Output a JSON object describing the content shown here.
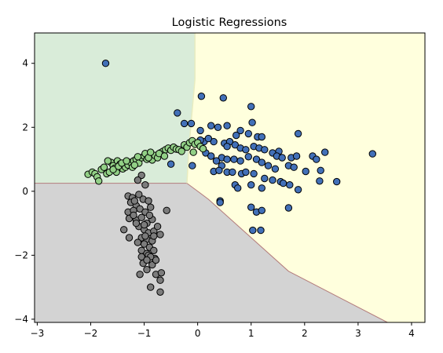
{
  "chart_data": {
    "type": "scatter",
    "title": "Logistic Regressions",
    "xlabel": "",
    "ylabel": "",
    "xlim": [
      -3.05,
      4.25
    ],
    "ylim": [
      -4.1,
      4.95
    ],
    "grid": false,
    "legend": "none",
    "x_ticks": [
      -3,
      -2,
      -1,
      0,
      1,
      2,
      3,
      4
    ],
    "y_ticks": [
      -4,
      -2,
      0,
      2,
      4
    ],
    "regions": [
      {
        "class": "green",
        "color": "#d9ecd9",
        "polygon": [
          [
            -3.05,
            4.95
          ],
          [
            -0.05,
            4.95
          ],
          [
            -0.05,
            3.5
          ],
          [
            -0.12,
            2.2
          ],
          [
            -0.17,
            1.2
          ],
          [
            -0.2,
            0.25
          ],
          [
            -3.05,
            0.25
          ]
        ]
      },
      {
        "class": "yellow",
        "color": "#ffffdd",
        "polygon": [
          [
            -0.05,
            4.95
          ],
          [
            4.25,
            4.95
          ],
          [
            4.25,
            -4.1
          ],
          [
            3.55,
            -4.1
          ],
          [
            1.7,
            -2.5
          ],
          [
            0.2,
            -0.25
          ],
          [
            -0.2,
            0.25
          ],
          [
            -0.17,
            1.2
          ],
          [
            -0.12,
            2.2
          ],
          [
            -0.05,
            3.5
          ]
        ]
      },
      {
        "class": "gray",
        "color": "#d3d3d3",
        "polygon": [
          [
            -3.05,
            0.25
          ],
          [
            -0.2,
            0.25
          ],
          [
            0.2,
            -0.25
          ],
          [
            1.7,
            -2.5
          ],
          [
            3.55,
            -4.1
          ],
          [
            -3.05,
            -4.1
          ]
        ]
      }
    ],
    "boundary_color": "#b37c7c",
    "series": [
      {
        "color": "#4270b8",
        "points": [
          [
            -1.72,
            4.0
          ],
          [
            0.07,
            2.97
          ],
          [
            0.48,
            2.92
          ],
          [
            1.0,
            2.65
          ],
          [
            -0.38,
            2.45
          ],
          [
            -0.25,
            2.12
          ],
          [
            -0.12,
            2.12
          ],
          [
            0.05,
            1.9
          ],
          [
            0.25,
            2.05
          ],
          [
            0.38,
            2.0
          ],
          [
            0.55,
            2.05
          ],
          [
            0.8,
            1.9
          ],
          [
            1.02,
            2.15
          ],
          [
            0.72,
            1.75
          ],
          [
            0.95,
            1.8
          ],
          [
            1.12,
            1.7
          ],
          [
            1.2,
            1.7
          ],
          [
            1.88,
            1.8
          ],
          [
            0.12,
            1.55
          ],
          [
            0.3,
            1.55
          ],
          [
            0.5,
            1.5
          ],
          [
            0.6,
            1.55
          ],
          [
            0.7,
            1.45
          ],
          [
            0.55,
            1.4
          ],
          [
            0.8,
            1.35
          ],
          [
            0.9,
            1.3
          ],
          [
            1.05,
            1.4
          ],
          [
            1.15,
            1.35
          ],
          [
            1.25,
            1.3
          ],
          [
            1.4,
            1.2
          ],
          [
            1.52,
            1.25
          ],
          [
            1.48,
            1.1
          ],
          [
            1.58,
            1.05
          ],
          [
            1.75,
            1.05
          ],
          [
            1.85,
            1.1
          ],
          [
            2.15,
            1.1
          ],
          [
            2.22,
            1.0
          ],
          [
            2.38,
            1.22
          ],
          [
            3.27,
            1.17
          ],
          [
            0.15,
            1.2
          ],
          [
            0.25,
            1.1
          ],
          [
            0.45,
            1.05
          ],
          [
            0.55,
            1.0
          ],
          [
            0.68,
            1.0
          ],
          [
            0.8,
            0.95
          ],
          [
            0.95,
            1.08
          ],
          [
            1.1,
            1.0
          ],
          [
            1.2,
            0.9
          ],
          [
            1.32,
            0.8
          ],
          [
            1.45,
            0.7
          ],
          [
            1.7,
            0.8
          ],
          [
            1.8,
            0.75
          ],
          [
            2.02,
            0.62
          ],
          [
            2.3,
            0.65
          ],
          [
            0.35,
            0.95
          ],
          [
            0.45,
            0.8
          ],
          [
            0.3,
            0.62
          ],
          [
            0.4,
            0.65
          ],
          [
            0.55,
            0.6
          ],
          [
            0.65,
            0.6
          ],
          [
            0.82,
            0.55
          ],
          [
            0.9,
            0.6
          ],
          [
            1.05,
            0.55
          ],
          [
            1.25,
            0.4
          ],
          [
            1.4,
            0.35
          ],
          [
            1.55,
            0.3
          ],
          [
            1.6,
            0.25
          ],
          [
            1.72,
            0.2
          ],
          [
            2.28,
            0.32
          ],
          [
            2.6,
            0.3
          ],
          [
            0.7,
            0.2
          ],
          [
            0.75,
            0.1
          ],
          [
            1.0,
            0.2
          ],
          [
            1.2,
            0.1
          ],
          [
            1.88,
            0.05
          ],
          [
            0.42,
            -0.3
          ],
          [
            0.42,
            -0.35
          ],
          [
            1.0,
            -0.5
          ],
          [
            1.1,
            -0.65
          ],
          [
            1.2,
            -0.6
          ],
          [
            1.7,
            -0.52
          ],
          [
            -0.1,
            0.8
          ],
          [
            -0.5,
            0.85
          ],
          [
            1.03,
            -1.22
          ],
          [
            1.18,
            -1.22
          ],
          [
            0.05,
            1.6
          ],
          [
            0.2,
            1.65
          ]
        ]
      },
      {
        "color": "#92d086",
        "points": [
          [
            -2.05,
            0.53
          ],
          [
            -1.97,
            0.6
          ],
          [
            -1.92,
            0.55
          ],
          [
            -1.88,
            0.45
          ],
          [
            -1.85,
            0.32
          ],
          [
            -1.8,
            0.68
          ],
          [
            -1.75,
            0.75
          ],
          [
            -1.7,
            0.55
          ],
          [
            -1.65,
            0.6
          ],
          [
            -1.62,
            0.9
          ],
          [
            -1.58,
            0.8
          ],
          [
            -1.55,
            0.72
          ],
          [
            -1.52,
            0.6
          ],
          [
            -1.5,
            0.95
          ],
          [
            -1.45,
            0.85
          ],
          [
            -1.4,
            0.7
          ],
          [
            -1.35,
            0.75
          ],
          [
            -1.3,
            0.82
          ],
          [
            -1.25,
            0.9
          ],
          [
            -1.2,
            0.95
          ],
          [
            -1.15,
            1.0
          ],
          [
            -1.1,
            0.88
          ],
          [
            -1.05,
            1.05
          ],
          [
            -1.0,
            1.1
          ],
          [
            -0.95,
            1.0
          ],
          [
            -0.9,
            1.15
          ],
          [
            -0.85,
            0.98
          ],
          [
            -0.8,
            1.12
          ],
          [
            -0.75,
            1.05
          ],
          [
            -0.7,
            1.2
          ],
          [
            -0.65,
            1.25
          ],
          [
            -0.6,
            1.3
          ],
          [
            -0.55,
            1.35
          ],
          [
            -0.5,
            1.28
          ],
          [
            -0.45,
            1.38
          ],
          [
            -0.4,
            1.32
          ],
          [
            -0.35,
            1.3
          ],
          [
            -0.3,
            1.25
          ],
          [
            -0.25,
            1.45
          ],
          [
            -0.2,
            1.38
          ],
          [
            -0.15,
            1.52
          ],
          [
            -0.1,
            1.58
          ],
          [
            -0.05,
            1.47
          ],
          [
            0.0,
            1.52
          ],
          [
            0.05,
            1.4
          ],
          [
            0.1,
            1.33
          ],
          [
            -0.08,
            1.22
          ],
          [
            -1.58,
            0.68
          ],
          [
            -1.48,
            0.78
          ],
          [
            -1.42,
            0.88
          ],
          [
            -1.22,
            0.75
          ],
          [
            -1.12,
            1.08
          ],
          [
            -0.98,
            1.18
          ],
          [
            -0.92,
            1.05
          ],
          [
            -0.88,
            1.22
          ],
          [
            -0.72,
            1.18
          ],
          [
            -0.62,
            1.1
          ],
          [
            -1.68,
            0.95
          ],
          [
            -1.33,
            0.95
          ],
          [
            -1.18,
            0.82
          ]
        ]
      },
      {
        "color": "#7c7c7c",
        "points": [
          [
            -1.05,
            0.5
          ],
          [
            -1.12,
            0.35
          ],
          [
            -0.98,
            0.2
          ],
          [
            -1.3,
            -0.15
          ],
          [
            -1.22,
            -0.2
          ],
          [
            -1.1,
            -0.1
          ],
          [
            -1.02,
            -0.25
          ],
          [
            -0.92,
            -0.3
          ],
          [
            -1.25,
            -0.35
          ],
          [
            -1.15,
            -0.45
          ],
          [
            -1.3,
            -0.65
          ],
          [
            -1.2,
            -0.6
          ],
          [
            -1.08,
            -0.55
          ],
          [
            -0.98,
            -0.65
          ],
          [
            -0.88,
            -0.5
          ],
          [
            -0.58,
            -0.6
          ],
          [
            -1.28,
            -0.85
          ],
          [
            -1.15,
            -0.9
          ],
          [
            -1.05,
            -0.82
          ],
          [
            -0.95,
            -1.0
          ],
          [
            -0.85,
            -0.88
          ],
          [
            -1.38,
            -1.2
          ],
          [
            -1.1,
            -1.1
          ],
          [
            -1.0,
            -1.2
          ],
          [
            -0.92,
            -1.3
          ],
          [
            -0.82,
            -1.25
          ],
          [
            -0.7,
            -1.35
          ],
          [
            -0.75,
            -1.1
          ],
          [
            -1.28,
            -1.45
          ],
          [
            -1.05,
            -1.45
          ],
          [
            -0.95,
            -1.5
          ],
          [
            -0.85,
            -1.55
          ],
          [
            -1.0,
            -1.65
          ],
          [
            -0.9,
            -1.75
          ],
          [
            -1.05,
            -1.85
          ],
          [
            -0.95,
            -1.95
          ],
          [
            -0.82,
            -1.85
          ],
          [
            -1.05,
            -2.05
          ],
          [
            -0.92,
            -2.0
          ],
          [
            -0.8,
            -2.1
          ],
          [
            -1.02,
            -2.25
          ],
          [
            -0.85,
            -2.3
          ],
          [
            -0.78,
            -2.15
          ],
          [
            -1.08,
            -2.6
          ],
          [
            -0.95,
            -2.45
          ],
          [
            -0.78,
            -2.6
          ],
          [
            -0.7,
            -2.78
          ],
          [
            -0.68,
            -2.55
          ],
          [
            -0.88,
            -3.0
          ],
          [
            -0.7,
            -3.15
          ],
          [
            -1.2,
            -0.75
          ],
          [
            -1.15,
            -1.0
          ],
          [
            -0.98,
            -1.4
          ],
          [
            -0.88,
            -2.05
          ],
          [
            -1.18,
            -0.3
          ],
          [
            -0.9,
            -0.75
          ],
          [
            -1.0,
            -1.05
          ],
          [
            -0.82,
            -1.4
          ],
          [
            -1.12,
            -1.6
          ],
          [
            -0.95,
            -2.15
          ]
        ]
      }
    ]
  }
}
